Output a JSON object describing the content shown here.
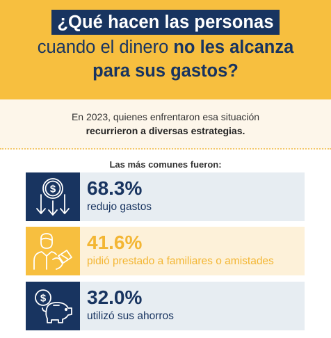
{
  "header": {
    "title_line1": "¿Qué hacen las personas",
    "title_line2_regular": "cuando el dinero ",
    "title_line2_bold": "no les alcanza",
    "title_line3": "para sus gastos?"
  },
  "intro": {
    "line1": "En 2023, quienes enfrentaron esa situación",
    "line2": "recurrieron a diversas estrategias."
  },
  "subheading": "Las más comunes fueron:",
  "strategies": [
    {
      "percent": "68.3%",
      "label": "redujo gastos",
      "value": 68.3,
      "icon": "money-down-arrows-icon"
    },
    {
      "percent": "41.6%",
      "label": "pidió prestado a familiares o amistades",
      "value": 41.6,
      "icon": "person-borrowing-icon"
    },
    {
      "percent": "32.0%",
      "label": "utilizó sus ahorros",
      "value": 32.0,
      "icon": "piggy-bank-icon"
    }
  ],
  "colors": {
    "navy": "#183460",
    "gold": "#f7bf3f",
    "light_blue_card": "#e7edf2",
    "cream_card": "#fdf1d9",
    "intro_bg": "#fdf6ea"
  }
}
